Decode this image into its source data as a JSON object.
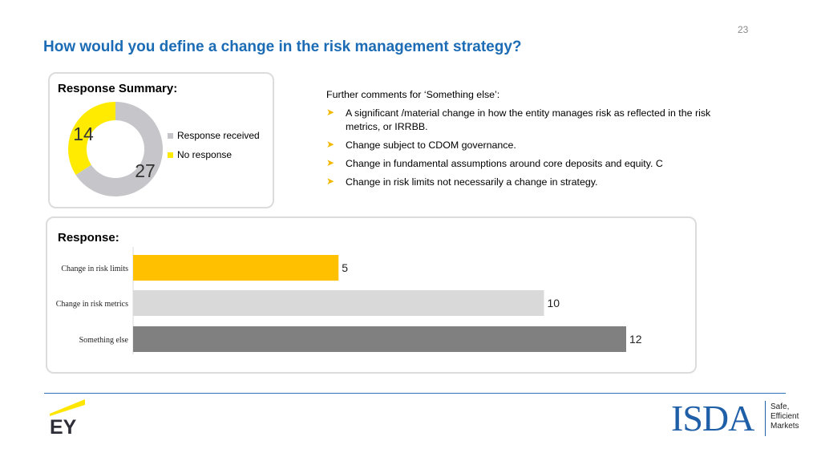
{
  "page": {
    "number": "23",
    "title": "How would you define a change in the risk management strategy?"
  },
  "summary": {
    "title": "Response Summary:",
    "legend": [
      {
        "label": "Response received",
        "color": "#c6c6ca"
      },
      {
        "label": "No response",
        "color": "#ffeb00"
      }
    ]
  },
  "comments": {
    "heading": "Further comments for ‘Something else’:",
    "bullet_icon": "arrow-bullet-icon",
    "items": [
      "A significant /material change in how the entity manages risk as reflected in the risk metrics, or IRRBB.",
      "Change subject to CDOM governance.",
      "Change in fundamental assumptions around core deposits and equity. C",
      "Change in risk limits not necessarily a change in strategy."
    ]
  },
  "response": {
    "title": "Response:"
  },
  "chart_data": [
    {
      "type": "pie",
      "title": "",
      "donut": true,
      "categories": [
        "Response received",
        "No response"
      ],
      "values": [
        27,
        14
      ],
      "colors": [
        "#c6c6ca",
        "#ffeb00"
      ],
      "data_labels": [
        "27",
        "14"
      ],
      "legend": "right"
    },
    {
      "type": "bar",
      "orientation": "horizontal",
      "title": "",
      "categories": [
        "Change in risk limits",
        "Change in risk metrics",
        "Something else"
      ],
      "values": [
        5,
        10,
        12
      ],
      "colors": [
        "#ffc000",
        "#d9d9d9",
        "#808080"
      ],
      "data_labels": [
        "5",
        "10",
        "12"
      ],
      "xlim": [
        0,
        12
      ],
      "grid": false
    }
  ],
  "footer": {
    "left_logo": "EY",
    "right_logo": "ISDA",
    "tagline": [
      "Safe,",
      "Efficient",
      "Markets"
    ]
  }
}
